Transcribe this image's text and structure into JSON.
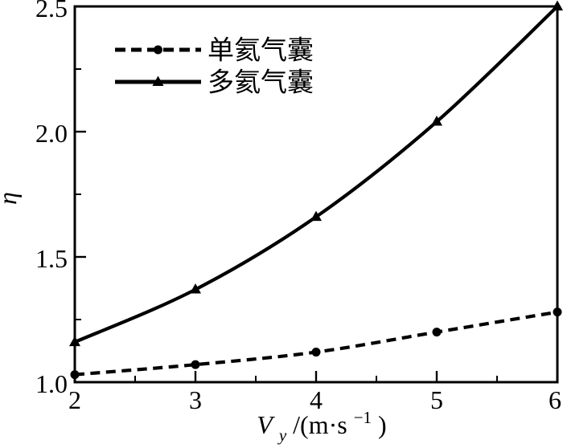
{
  "chart_data": {
    "type": "line",
    "title": "",
    "ylabel": "η",
    "xlabel_parts": {
      "v": "V",
      "sub": "y",
      "mid": "/(m·s",
      "sup": "−1",
      "close": ")"
    },
    "x": [
      2,
      3,
      4,
      5,
      6
    ],
    "series": [
      {
        "name": "单氦气囊",
        "values": [
          1.03,
          1.07,
          1.12,
          1.2,
          1.28
        ],
        "line": "dashed",
        "marker": "circle"
      },
      {
        "name": "多氦气囊",
        "values": [
          1.16,
          1.37,
          1.66,
          2.04,
          2.5
        ],
        "line": "solid",
        "marker": "triangle"
      }
    ],
    "xlim": [
      2,
      6
    ],
    "ylim": [
      1.0,
      2.5
    ],
    "x_major_ticks": [
      2,
      3,
      4,
      5,
      6
    ],
    "x_minor_ticks": [
      2.5,
      3.5,
      4.5,
      5.5
    ],
    "y_major_ticks": [
      1.0,
      1.5,
      2.0,
      2.5
    ],
    "y_minor_ticks": [
      1.25,
      1.75,
      2.25
    ],
    "x_tick_labels": [
      "2",
      "3",
      "4",
      "5",
      "6"
    ],
    "y_tick_labels": [
      "1.0",
      "1.5",
      "2.0",
      "2.5"
    ],
    "grid": false,
    "legend_position": "upper-left-inside",
    "colors": {
      "line": "#000000",
      "background": "#ffffff"
    }
  }
}
